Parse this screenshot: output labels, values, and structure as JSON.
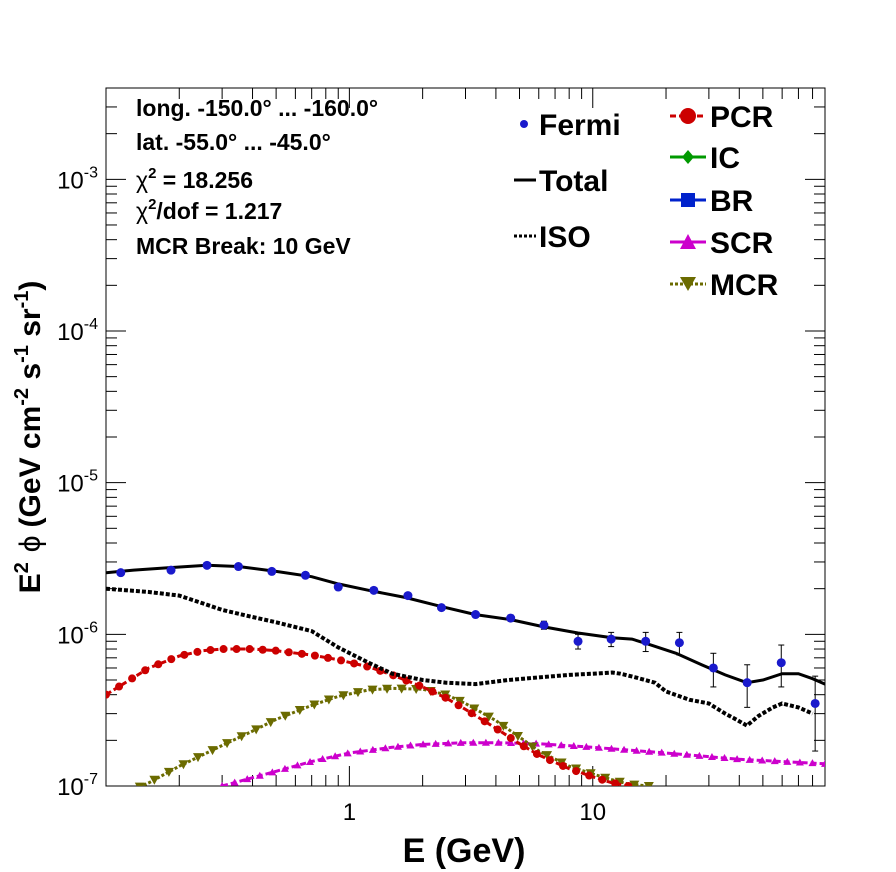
{
  "chart_data": {
    "type": "line",
    "title": "",
    "xlabel": "E (GeV)",
    "ylabel_parts": {
      "e": "E",
      "two": "2",
      "phi": "ϕ",
      "units": "(GeV cm",
      "m2": "-2",
      "s": " s",
      "m1": "-1",
      "sr": " sr",
      "m1b": "-1",
      "close": ")"
    },
    "x_scale": "log",
    "y_scale": "log",
    "xlim": [
      0.1,
      90
    ],
    "ylim": [
      1e-07,
      0.004
    ],
    "x_ticks": [
      {
        "v": 1,
        "label": "1"
      },
      {
        "v": 10,
        "label": "10"
      }
    ],
    "y_ticks": [
      {
        "v": 1e-07,
        "base": "10",
        "exp": "-7"
      },
      {
        "v": 1e-06,
        "base": "10",
        "exp": "-6"
      },
      {
        "v": 1e-05,
        "base": "10",
        "exp": "-5"
      },
      {
        "v": 0.0001,
        "base": "10",
        "exp": "-4"
      },
      {
        "v": 0.001,
        "base": "10",
        "exp": "-3"
      }
    ],
    "annotations": {
      "line1": "long. -150.0° ... -160.0°",
      "line2": "lat. -55.0° ... -45.0°",
      "chi_sym": "χ",
      "chi_exp": "2",
      "chi_val": " = 18.256",
      "chidof_rest": "/dof = 1.217",
      "break": "MCR Break: 10 GeV"
    },
    "legend_position": "top-right",
    "legend": [
      {
        "key": "fermi",
        "label": "Fermi"
      },
      {
        "key": "total",
        "label": "Total"
      },
      {
        "key": "iso",
        "label": "ISO"
      },
      {
        "key": "pcr",
        "label": "PCR"
      },
      {
        "key": "ic",
        "label": "IC"
      },
      {
        "key": "br",
        "label": "BR"
      },
      {
        "key": "scr",
        "label": "SCR"
      },
      {
        "key": "mcr",
        "label": "MCR"
      }
    ],
    "series": {
      "fermi": {
        "name": "Fermi",
        "color": "#1a1acc",
        "points": [
          {
            "x": 0.115,
            "y": 2.55e-06,
            "err": 5e-08
          },
          {
            "x": 0.185,
            "y": 2.65e-06,
            "err": 5e-08
          },
          {
            "x": 0.26,
            "y": 2.85e-06,
            "err": 5e-08
          },
          {
            "x": 0.35,
            "y": 2.8e-06,
            "err": 5e-08
          },
          {
            "x": 0.48,
            "y": 2.6e-06,
            "err": 5e-08
          },
          {
            "x": 0.66,
            "y": 2.45e-06,
            "err": 5e-08
          },
          {
            "x": 0.9,
            "y": 2.05e-06,
            "err": 5e-08
          },
          {
            "x": 1.26,
            "y": 1.95e-06,
            "err": 5e-08
          },
          {
            "x": 1.74,
            "y": 1.8e-06,
            "err": 5e-08
          },
          {
            "x": 2.39,
            "y": 1.5e-06,
            "err": 5e-08
          },
          {
            "x": 3.3,
            "y": 1.35e-06,
            "err": 5e-08
          },
          {
            "x": 4.6,
            "y": 1.28e-06,
            "err": 6e-08
          },
          {
            "x": 6.3,
            "y": 1.15e-06,
            "err": 7e-08
          },
          {
            "x": 8.7,
            "y": 9e-07,
            "err": 1e-07
          },
          {
            "x": 11.9,
            "y": 9.3e-07,
            "err": 1e-07
          },
          {
            "x": 16.5,
            "y": 9e-07,
            "err": 1.3e-07
          },
          {
            "x": 22.7,
            "y": 8.8e-07,
            "err": 1.5e-07
          },
          {
            "x": 31.3,
            "y": 6e-07,
            "err": 1.5e-07
          },
          {
            "x": 43.1,
            "y": 4.8e-07,
            "err": 1.5e-07
          },
          {
            "x": 59.5,
            "y": 6.5e-07,
            "err": 2e-07
          },
          {
            "x": 82,
            "y": 3.5e-07,
            "err": 1.8e-07
          }
        ]
      },
      "total": {
        "name": "Total",
        "color": "#000000",
        "x": [
          0.1,
          0.13,
          0.18,
          0.26,
          0.35,
          0.5,
          0.7,
          0.9,
          1.2,
          1.7,
          2.4,
          3.3,
          4.6,
          6.3,
          8.7,
          12,
          14.5,
          17,
          22,
          28,
          35,
          43,
          50,
          60,
          70,
          80,
          90
        ],
        "y": [
          2.55e-06,
          2.65e-06,
          2.75e-06,
          2.85e-06,
          2.8e-06,
          2.6e-06,
          2.4e-06,
          2.15e-06,
          1.95e-06,
          1.75e-06,
          1.52e-06,
          1.35e-06,
          1.25e-06,
          1.12e-06,
          1.02e-06,
          9.5e-07,
          9.3e-07,
          8.6e-07,
          7.5e-07,
          6.3e-07,
          5.4e-07,
          4.8e-07,
          5e-07,
          5.5e-07,
          5.5e-07,
          5.1e-07,
          4.7e-07
        ]
      },
      "iso": {
        "name": "ISO",
        "color": "#000000",
        "x": [
          0.1,
          0.15,
          0.2,
          0.25,
          0.3,
          0.4,
          0.5,
          0.7,
          0.9,
          1.2,
          1.5,
          2,
          2.5,
          3.3,
          4.5,
          6,
          8,
          10,
          12,
          13,
          15,
          18,
          20,
          25,
          30,
          35,
          38,
          43,
          48,
          55,
          60,
          70,
          80
        ],
        "y": [
          2e-06,
          1.9e-06,
          1.8e-06,
          1.6e-06,
          1.45e-06,
          1.3e-06,
          1.2e-06,
          1.05e-06,
          8.2e-07,
          6.5e-07,
          5.5e-07,
          5e-07,
          4.8e-07,
          4.7e-07,
          5e-07,
          5.2e-07,
          5.4e-07,
          5.5e-07,
          5.6e-07,
          5.5e-07,
          5.2e-07,
          4.8e-07,
          4.2e-07,
          3.7e-07,
          3.5e-07,
          3e-07,
          2.8e-07,
          2.5e-07,
          2.9e-07,
          3.3e-07,
          3.5e-07,
          3.3e-07,
          3e-07
        ]
      },
      "pcr": {
        "name": "PCR",
        "color": "#cc0000",
        "x": [
          0.1,
          0.12,
          0.15,
          0.2,
          0.25,
          0.3,
          0.4,
          0.5,
          0.7,
          0.9,
          1.2,
          1.5,
          2,
          2.5,
          3,
          4,
          5,
          6,
          8,
          10,
          12,
          14
        ],
        "y": [
          4e-07,
          4.8e-07,
          6e-07,
          7.2e-07,
          7.8e-07,
          8e-07,
          8e-07,
          7.8e-07,
          7.3e-07,
          6.8e-07,
          6.1e-07,
          5.4e-07,
          4.5e-07,
          3.8e-07,
          3.2e-07,
          2.4e-07,
          1.9e-07,
          1.6e-07,
          1.3e-07,
          1.15e-07,
          1.05e-07,
          1e-07
        ]
      },
      "mcr": {
        "name": "MCR",
        "color": "#6b6b00",
        "x": [
          0.12,
          0.15,
          0.2,
          0.3,
          0.4,
          0.5,
          0.7,
          0.9,
          1.2,
          1.5,
          2,
          2.5,
          3,
          4,
          5,
          6,
          8,
          10,
          12,
          14,
          17
        ],
        "y": [
          9e-08,
          1.05e-07,
          1.35e-07,
          1.85e-07,
          2.3e-07,
          2.75e-07,
          3.4e-07,
          3.9e-07,
          4.3e-07,
          4.4e-07,
          4.35e-07,
          4e-07,
          3.5e-07,
          2.7e-07,
          2.1e-07,
          1.7e-07,
          1.35e-07,
          1.2e-07,
          1.1e-07,
          1.03e-07,
          1e-07
        ]
      },
      "scr": {
        "name": "SCR",
        "color": "#cc00cc",
        "x": [
          0.3,
          0.5,
          0.7,
          1,
          1.5,
          2,
          3,
          4,
          6,
          10,
          20,
          40,
          90
        ],
        "y": [
          1e-07,
          1.25e-07,
          1.45e-07,
          1.65e-07,
          1.8e-07,
          1.88e-07,
          1.93e-07,
          1.93e-07,
          1.9e-07,
          1.8e-07,
          1.65e-07,
          1.5e-07,
          1.4e-07
        ]
      },
      "ic": {
        "name": "IC",
        "color": "#009900",
        "x": [],
        "y": []
      },
      "br": {
        "name": "BR",
        "color": "#0022cc",
        "x": [],
        "y": []
      }
    }
  }
}
